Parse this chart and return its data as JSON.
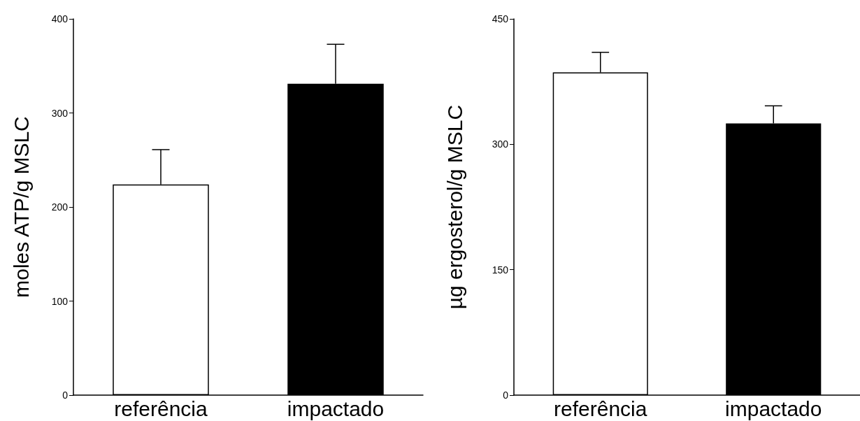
{
  "chart_data": [
    {
      "type": "bar",
      "ylabel": "moles ATP/g MSLC",
      "categories": [
        "referência",
        "impactado"
      ],
      "values": [
        224,
        331
      ],
      "colors": [
        "#ffffff",
        "#000000"
      ],
      "errors": [
        [
          224,
          261
        ],
        [
          331,
          373
        ]
      ],
      "ylim": [
        0,
        400
      ],
      "yticks": [
        0,
        100,
        200,
        300,
        400
      ]
    },
    {
      "type": "bar",
      "ylabel": "µg ergosterol/g MSLC",
      "categories": [
        "referência",
        "impactado"
      ],
      "values": [
        386,
        325
      ],
      "colors": [
        "#ffffff",
        "#000000"
      ],
      "errors": [
        [
          386,
          410
        ],
        [
          325,
          346
        ]
      ],
      "ylim": [
        0,
        450
      ],
      "yticks": [
        0,
        150,
        300,
        450
      ]
    }
  ]
}
